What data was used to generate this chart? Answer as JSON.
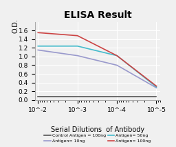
{
  "title": "ELISA Result",
  "ylabel": "O.D.",
  "xlabel": "Serial Dilutions  of Antibody",
  "x_ticks_labels": [
    "10^-2",
    "10^-3",
    "10^-4",
    "10^-5"
  ],
  "x_values": [
    0.01,
    0.001,
    0.0001,
    1e-05
  ],
  "ylim": [
    0,
    1.8
  ],
  "yticks": [
    0,
    0.2,
    0.4,
    0.6,
    0.8,
    1.0,
    1.2,
    1.4,
    1.6
  ],
  "lines": [
    {
      "label": "Control Antigen = 100ng",
      "color": "#555555",
      "values": [
        0.08,
        0.08,
        0.08,
        0.08
      ]
    },
    {
      "label": "Antigen= 10ng",
      "color": "#9999cc",
      "values": [
        1.15,
        1.02,
        0.8,
        0.28
      ]
    },
    {
      "label": "Antigen= 50ng",
      "color": "#44bbcc",
      "values": [
        1.24,
        1.24,
        1.02,
        0.3
      ]
    },
    {
      "label": "Antigen= 100ng",
      "color": "#cc4444",
      "values": [
        1.55,
        1.48,
        1.02,
        0.32
      ]
    }
  ],
  "legend_entries": [
    {
      "label": "Control Antigen = 100ng",
      "color": "#555555"
    },
    {
      "label": "Antigen= 10ng",
      "color": "#9999cc"
    },
    {
      "label": "Antigen= 50ng",
      "color": "#44bbcc"
    },
    {
      "label": "Antigen= 100ng",
      "color": "#cc4444"
    }
  ],
  "background_color": "#f0f0f0",
  "grid_color": "#ffffff",
  "title_fontsize": 10,
  "label_fontsize": 7,
  "tick_fontsize": 6.5
}
